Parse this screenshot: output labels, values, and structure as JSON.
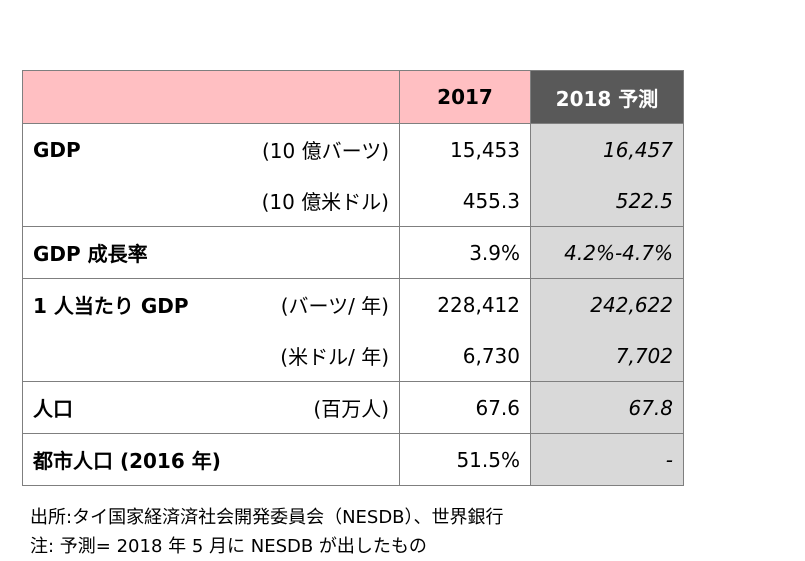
{
  "header": {
    "col_2017": "2017",
    "col_2018": "2018 予測"
  },
  "rows": [
    {
      "label": "GDP",
      "unit": "(10 億バーツ)",
      "v2017": "15,453",
      "v2018": "16,457"
    },
    {
      "label": "",
      "unit": "(10 億米ドル)",
      "v2017": "455.3",
      "v2018": "522.5"
    },
    {
      "label": "GDP 成長率",
      "unit": "",
      "v2017": "3.9%",
      "v2018": "4.2%-4.7%"
    },
    {
      "label": "1 人当たり GDP",
      "unit": "(バーツ/ 年)",
      "v2017": "228,412",
      "v2018": "242,622"
    },
    {
      "label": "",
      "unit": "(米ドル/ 年)",
      "v2017": "6,730",
      "v2018": "7,702"
    },
    {
      "label": "人口",
      "unit": "(百万人)",
      "v2017": "67.6",
      "v2018": "67.8"
    },
    {
      "label": "都市人口 (2016 年)",
      "unit": "",
      "v2017": "51.5%",
      "v2018": "-"
    }
  ],
  "notes": {
    "source": "出所:タイ国家経済済社会開発委員会（NESDB）、世界銀行",
    "note": "注:  予測= 2018 年 5 月に NESDB が出したもの"
  }
}
